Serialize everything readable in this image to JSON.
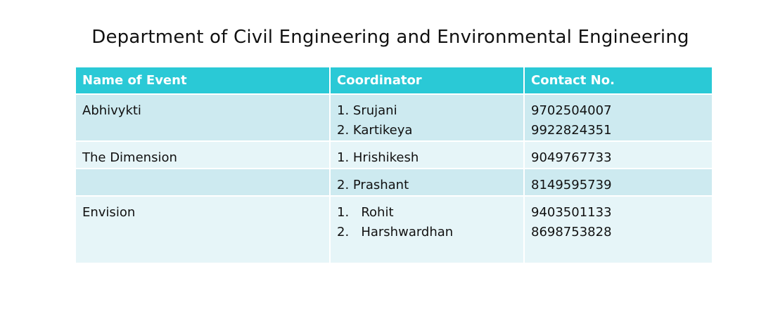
{
  "title": "Department of Civil Engineering and Environmental Engineering",
  "table": {
    "headers": [
      "Name of Event",
      "Coordinator",
      "Contact No."
    ],
    "rows": [
      {
        "event": "Abhivykti",
        "coordinators": [
          "1. Srujani",
          "2. Kartikeya"
        ],
        "contacts": [
          "9702504007",
          "9922824351"
        ]
      },
      {
        "event": "The Dimension",
        "coordinators": [
          "1. Hrishikesh"
        ],
        "contacts": [
          "9049767733"
        ]
      },
      {
        "event": "",
        "coordinators": [
          "2. Prashant"
        ],
        "contacts": [
          "8149595739"
        ]
      },
      {
        "event": "Envision",
        "coordinators": [
          "1.   Rohit",
          "2.   Harshwardhan"
        ],
        "contacts": [
          "9403501133",
          "8698753828"
        ]
      }
    ]
  }
}
